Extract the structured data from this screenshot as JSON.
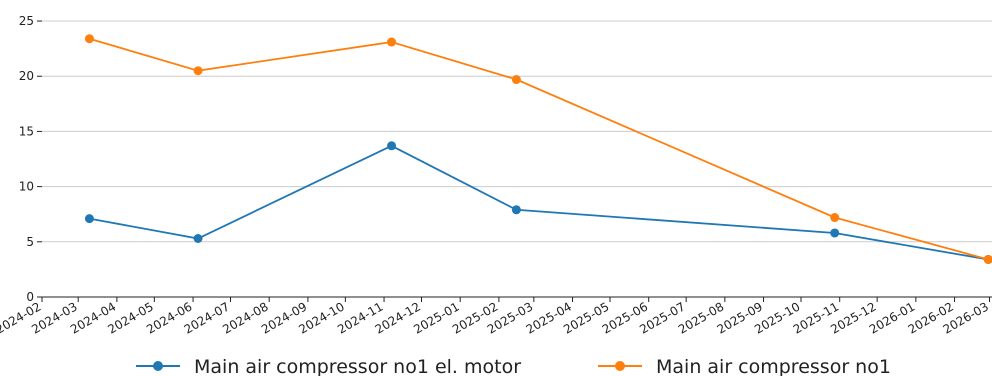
{
  "chart_data": {
    "type": "line",
    "title": "",
    "xlabel": "",
    "ylabel": "",
    "ylim": [
      0,
      26
    ],
    "yticks": [
      0,
      5,
      10,
      15,
      20,
      25
    ],
    "grid": "horizontal",
    "legend_position": "bottom",
    "xticks": [
      "2024-02",
      "2024-03",
      "2024-04",
      "2024-05",
      "2024-06",
      "2024-07",
      "2024-08",
      "2024-09",
      "2024-10",
      "2024-11",
      "2024-12",
      "2025-01",
      "2025-02",
      "2025-03",
      "2025-04",
      "2025-05",
      "2025-06",
      "2025-07",
      "2025-08",
      "2025-09",
      "2025-10",
      "2025-11",
      "2025-12",
      "2026-01",
      "2026-02",
      "2026-03"
    ],
    "series": [
      {
        "name": "Main air compressor no1 el. motor",
        "color": "#1f77b4",
        "points": [
          {
            "x": "2024-03-10",
            "y": 7.1
          },
          {
            "x": "2024-06-05",
            "y": 5.3
          },
          {
            "x": "2024-11-07",
            "y": 13.7
          },
          {
            "x": "2025-02-15",
            "y": 7.9
          },
          {
            "x": "2025-10-28",
            "y": 5.8
          },
          {
            "x": "2026-02-28",
            "y": 3.4
          }
        ]
      },
      {
        "name": "Main air compressor no1",
        "color": "#ff7f0e",
        "points": [
          {
            "x": "2024-03-10",
            "y": 23.4
          },
          {
            "x": "2024-06-05",
            "y": 20.5
          },
          {
            "x": "2024-11-07",
            "y": 23.1
          },
          {
            "x": "2025-02-15",
            "y": 19.7
          },
          {
            "x": "2025-10-28",
            "y": 7.2
          },
          {
            "x": "2026-02-28",
            "y": 3.4
          }
        ]
      }
    ]
  }
}
